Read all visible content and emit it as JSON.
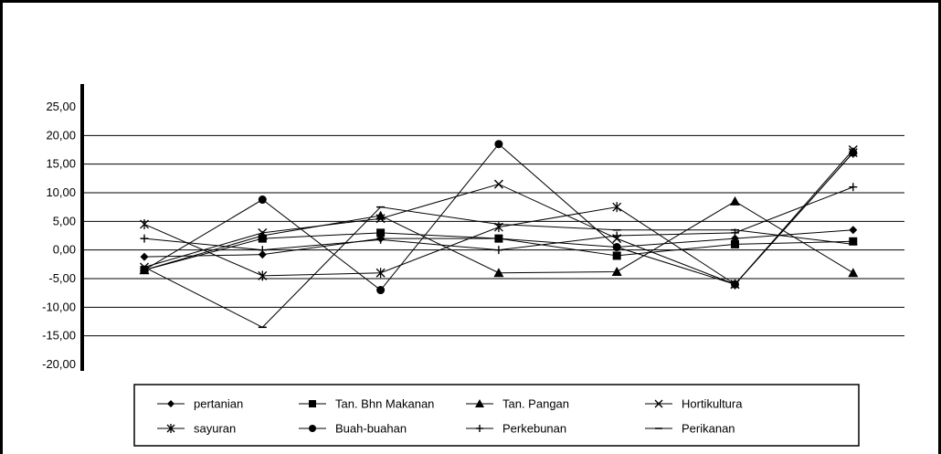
{
  "chart_data": {
    "type": "line",
    "title": "",
    "xlabel": "",
    "ylabel": "",
    "ylim": [
      -20,
      25
    ],
    "y_ticks": [
      "25,00",
      "20,00",
      "15,00",
      "10,00",
      "5,00",
      "0,00",
      "-5,00",
      "-10,00",
      "-15,00",
      "-20,00"
    ],
    "y_tick_values": [
      25,
      20,
      15,
      10,
      5,
      0,
      -5,
      -10,
      -15,
      -20
    ],
    "x_count": 7,
    "grid": "horizontal",
    "legend_position": "bottom",
    "series": [
      {
        "name": "pertanian",
        "marker": "diamond",
        "values": [
          -1.2,
          -0.8,
          2.0,
          2.0,
          0.5,
          2.0,
          3.5
        ]
      },
      {
        "name": "Tan. Bhn Makanan",
        "marker": "square",
        "values": [
          -3.5,
          2.0,
          3.0,
          2.0,
          -1.0,
          1.0,
          1.5
        ]
      },
      {
        "name": "Tan. Pangan",
        "marker": "triangle",
        "values": [
          -3.5,
          2.5,
          6.0,
          -4.0,
          -3.8,
          8.5,
          -4.0
        ]
      },
      {
        "name": "Hortikultura",
        "marker": "x",
        "values": [
          -3.0,
          3.0,
          5.5,
          11.5,
          2.0,
          -6.0,
          17.5
        ]
      },
      {
        "name": "sayuran",
        "marker": "asterisk",
        "values": [
          4.5,
          -4.5,
          -4.0,
          4.0,
          7.5,
          -6.0,
          17.0
        ]
      },
      {
        "name": "Buah-buahan",
        "marker": "circle",
        "values": [
          -3.5,
          8.8,
          -7.0,
          18.5,
          0.5,
          -6.0,
          17.0
        ]
      },
      {
        "name": "Perkebunan",
        "marker": "plus",
        "values": [
          2.0,
          0.0,
          1.8,
          0.0,
          2.5,
          3.0,
          11.0
        ]
      },
      {
        "name": "Perikanan",
        "marker": "dash",
        "values": [
          -3.0,
          -13.5,
          7.5,
          4.5,
          3.5,
          3.5,
          1.0
        ]
      }
    ]
  }
}
